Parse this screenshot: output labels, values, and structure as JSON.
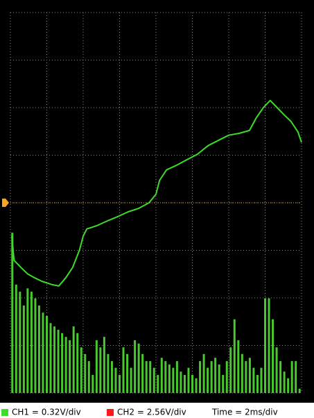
{
  "chart_data": {
    "type": "scope",
    "series": [
      {
        "name": "CH1 = 0.32V/div",
        "color": "#3ddc2a",
        "x": [
          0.04,
          0.1,
          0.29,
          0.48,
          0.67,
          0.86,
          1.14,
          1.33,
          1.52,
          1.71,
          1.9,
          2.0,
          2.1,
          2.38,
          2.67,
          2.95,
          3.24,
          3.52,
          3.81,
          4.0,
          4.1,
          4.29,
          4.57,
          4.86,
          5.14,
          5.43,
          5.71,
          6.0,
          6.29,
          6.57,
          6.76,
          6.95,
          7.14,
          7.33,
          7.52,
          7.71,
          7.9,
          8
        ],
        "values": [
          3.3,
          2.79,
          2.64,
          2.5,
          2.42,
          2.35,
          2.28,
          2.25,
          2.42,
          2.64,
          3.01,
          3.3,
          3.45,
          3.52,
          3.62,
          3.71,
          3.81,
          3.88,
          4.0,
          4.18,
          4.47,
          4.69,
          4.79,
          4.91,
          5.02,
          5.2,
          5.31,
          5.42,
          5.46,
          5.52,
          5.79,
          6.0,
          6.15,
          6.0,
          5.85,
          5.71,
          5.49,
          5.27
        ]
      },
      {
        "name": "CH2 = 2.56V/div",
        "color": "#ff1a1a"
      }
    ],
    "bars": {
      "color": "#49c92f",
      "values": [
        3.37,
        2.28,
        2.13,
        1.84,
        2.2,
        2.13,
        1.99,
        1.84,
        1.69,
        1.62,
        1.47,
        1.4,
        1.33,
        1.26,
        1.18,
        1.11,
        1.4,
        1.26,
        0.96,
        0.82,
        0.67,
        0.38,
        1.11,
        0.96,
        1.18,
        0.82,
        0.67,
        0.53,
        0.38,
        0.96,
        0.82,
        0.53,
        1.11,
        1.04,
        0.82,
        0.67,
        0.67,
        0.53,
        0.38,
        0.74,
        0.67,
        0.6,
        0.53,
        0.67,
        0.45,
        0.38,
        0.53,
        0.38,
        0.31,
        0.67,
        0.82,
        0.53,
        0.67,
        0.74,
        0.6,
        0.38,
        0.67,
        0.96,
        1.55,
        1.11,
        0.82,
        0.67,
        0.74,
        0.53,
        0.38,
        0.53,
        1.99,
        1.99,
        1.55,
        0.96,
        0.67,
        0.45,
        0.31,
        0.67,
        0.67,
        0.09
      ]
    },
    "time_label": "Time = 2ms/div",
    "trigger_level": 4,
    "trigger_color": "#f5a623",
    "xlim": [
      0,
      8
    ],
    "ylim": [
      0,
      8
    ],
    "xticks": [
      0,
      1,
      2,
      3,
      4,
      5,
      6,
      7,
      8
    ],
    "yticks": [
      0,
      1,
      2,
      3,
      4,
      5,
      6,
      7,
      8
    ],
    "grid": true
  }
}
